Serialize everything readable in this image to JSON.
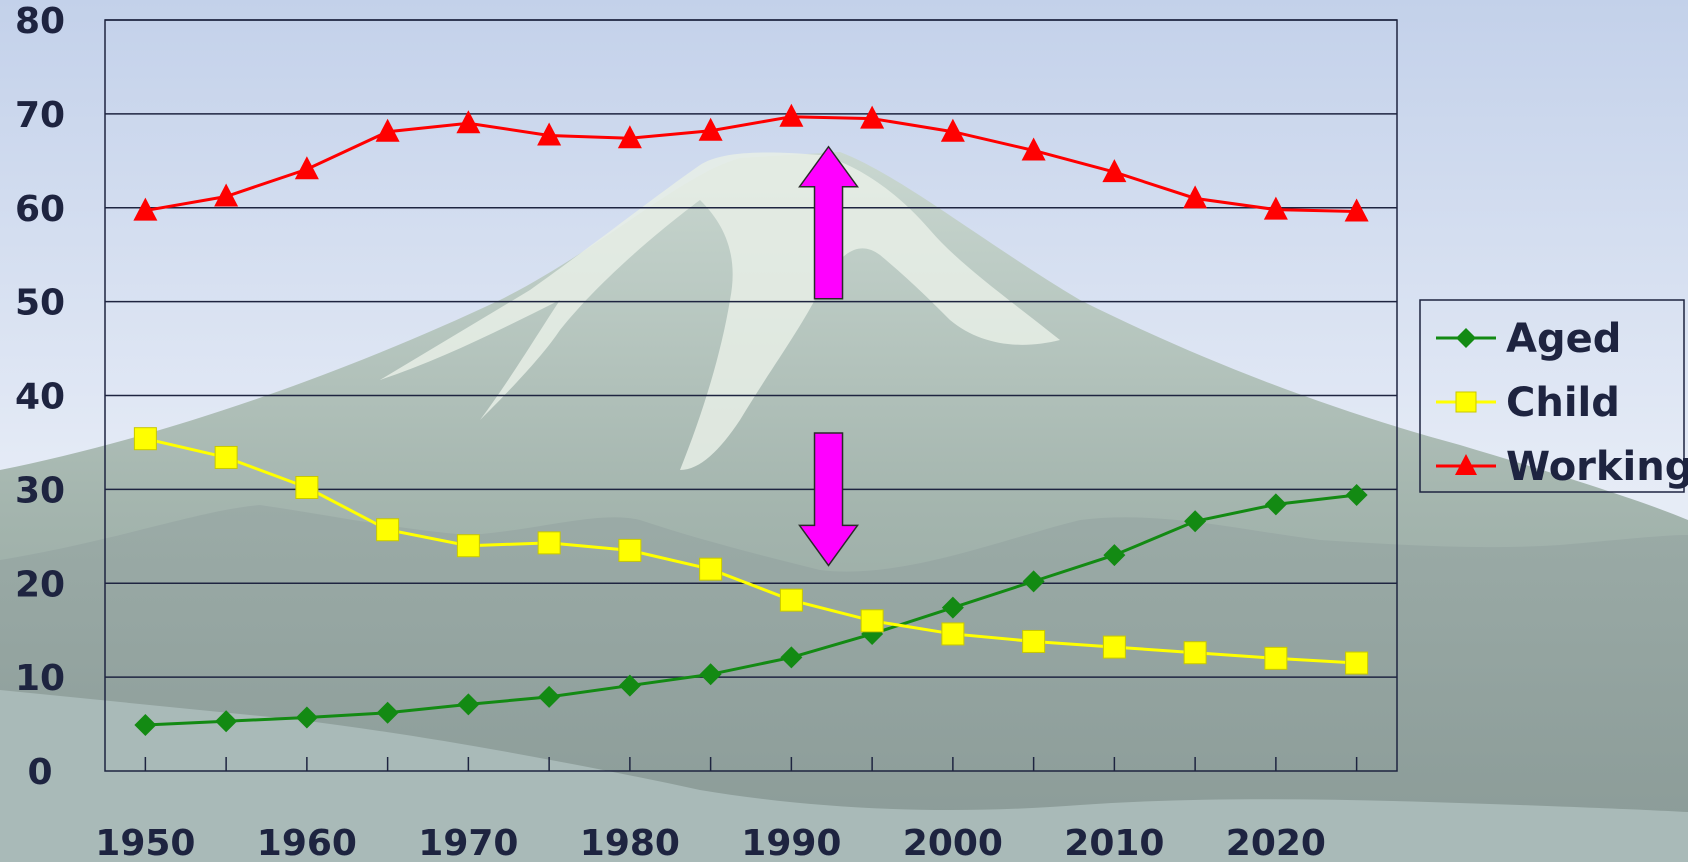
{
  "chart_data": {
    "type": "line",
    "title": "",
    "xlabel": "",
    "ylabel": "",
    "x": [
      1950,
      1955,
      1960,
      1965,
      1970,
      1975,
      1980,
      1985,
      1990,
      1995,
      2000,
      2005,
      2010,
      2015,
      2020,
      2025
    ],
    "x_tick_labels": [
      "1950",
      "1960",
      "1970",
      "1980",
      "1990",
      "2000",
      "2010",
      "2020"
    ],
    "y_tick_labels": [
      "0",
      "10",
      "20",
      "30",
      "40",
      "50",
      "60",
      "70",
      "80"
    ],
    "xlim": [
      1947.5,
      2027.5
    ],
    "ylim": [
      0,
      80
    ],
    "grid": "horizontal",
    "legend_position": "right",
    "series": [
      {
        "name": "Aged",
        "color": "#138a13",
        "marker": "diamond",
        "values": [
          4.9,
          5.3,
          5.7,
          6.2,
          7.1,
          7.9,
          9.1,
          10.3,
          12.1,
          14.6,
          17.4,
          20.2,
          23.0,
          26.6,
          28.4,
          29.4
        ]
      },
      {
        "name": "Child",
        "color": "#ffff00",
        "marker": "square",
        "values": [
          35.4,
          33.4,
          30.2,
          25.7,
          24.0,
          24.3,
          23.5,
          21.5,
          18.2,
          16.0,
          14.6,
          13.8,
          13.2,
          12.6,
          12.0,
          11.5
        ]
      },
      {
        "name": "Working",
        "color": "#ff0000",
        "marker": "triangle",
        "values": [
          59.7,
          61.2,
          64.1,
          68.1,
          69.0,
          67.7,
          67.4,
          68.2,
          69.7,
          69.5,
          68.1,
          66.1,
          63.8,
          61.0,
          59.8,
          59.6
        ]
      }
    ],
    "annotations": [
      {
        "type": "up-arrow",
        "color": "#ff00ff",
        "x": 1992.3,
        "y_from": 50.3,
        "y_to": 66.5
      },
      {
        "type": "down-arrow",
        "color": "#ff00ff",
        "x": 1992.3,
        "y_from": 36.0,
        "y_to": 21.9
      }
    ]
  }
}
